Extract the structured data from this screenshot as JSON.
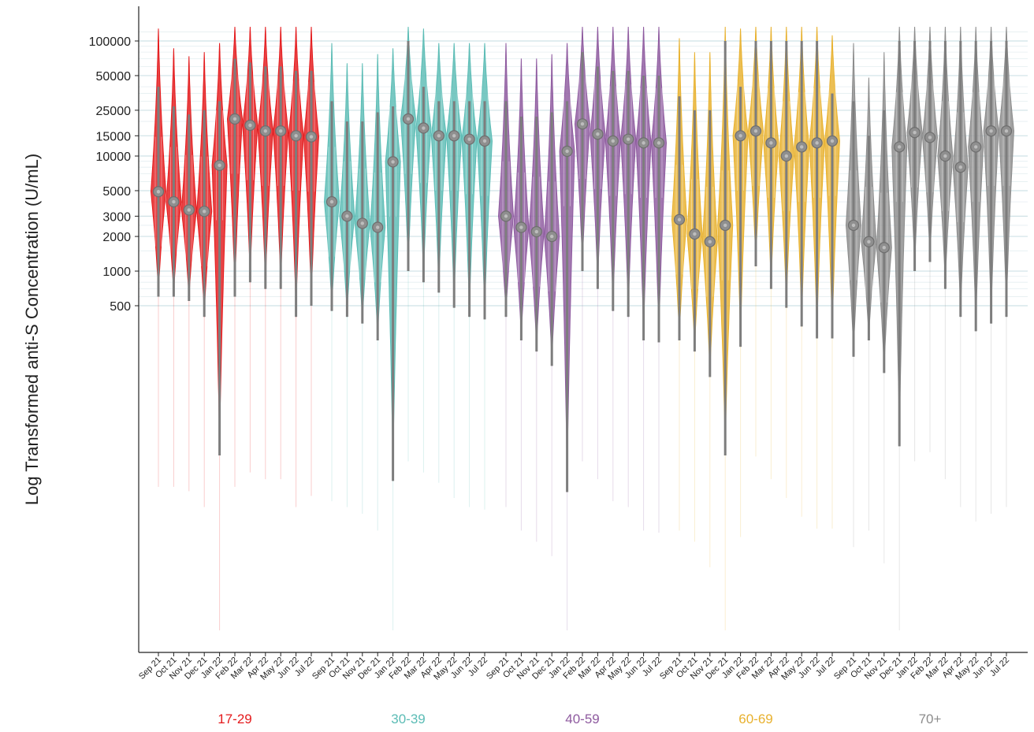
{
  "chart_data": {
    "type": "violin",
    "title": "",
    "xlabel": "",
    "ylabel": "Log Transformed anti-S Concentration (U/mL)",
    "y_scale": "log",
    "y_ticks": [
      500,
      1000,
      2000,
      3000,
      5000,
      10000,
      15000,
      25000,
      50000,
      100000
    ],
    "y_tick_labels": [
      "500",
      "1000",
      "2000",
      "3000",
      "5000",
      "10000",
      "15000",
      "25000",
      "50000",
      "100000"
    ],
    "ylim": [
      0.5,
      140000
    ],
    "grid": "horizontal",
    "months": [
      "Sep 21",
      "Oct 21",
      "Nov 21",
      "Dec 21",
      "Jan 22",
      "Feb 22",
      "Mar 22",
      "Apr 22",
      "May 22",
      "Jun 22",
      "Jul 22"
    ],
    "groups": [
      {
        "name": "17-29",
        "color": "#e41a1c",
        "medians": [
          4900,
          4000,
          3400,
          3300,
          8300,
          21000,
          18500,
          16500,
          16500,
          15000,
          14700
        ],
        "lower": [
          600,
          600,
          550,
          400,
          25,
          600,
          800,
          700,
          700,
          400,
          500
        ],
        "upper": [
          40000,
          27000,
          23000,
          25000,
          30000,
          70000,
          65000,
          60000,
          60000,
          55000,
          55000
        ]
      },
      {
        "name": "30-39",
        "color": "#5bbcb5",
        "medians": [
          4000,
          3000,
          2600,
          2400,
          8900,
          21000,
          17500,
          15000,
          15000,
          14000,
          13500
        ],
        "lower": [
          450,
          400,
          350,
          250,
          15,
          1000,
          800,
          650,
          480,
          400,
          380
        ],
        "upper": [
          30000,
          20000,
          20000,
          24000,
          27000,
          100000,
          40000,
          30000,
          30000,
          30000,
          30000
        ]
      },
      {
        "name": "40-59",
        "color": "#8e5a9f",
        "medians": [
          3000,
          2400,
          2200,
          2000,
          11000,
          19000,
          15500,
          13500,
          14000,
          13000,
          13000
        ],
        "lower": [
          400,
          250,
          200,
          150,
          12,
          1000,
          700,
          450,
          400,
          250,
          240
        ],
        "upper": [
          30000,
          22000,
          22000,
          24000,
          30000,
          80000,
          60000,
          55000,
          55000,
          50000,
          50000
        ]
      },
      {
        "name": "60-69",
        "color": "#e8b12e",
        "medians": [
          2800,
          2100,
          1800,
          2500,
          15000,
          16500,
          13000,
          10000,
          12000,
          13000,
          13500
        ],
        "lower": [
          250,
          200,
          120,
          25,
          220,
          1100,
          700,
          480,
          330,
          260,
          260
        ],
        "upper": [
          33000,
          25000,
          25000,
          100000,
          40000,
          100000,
          100000,
          100000,
          100000,
          100000,
          35000
        ]
      },
      {
        "name": "70+",
        "color": "#8c8c8c",
        "medians": [
          2500,
          1800,
          1600,
          12000,
          16000,
          14500,
          10000,
          8000,
          12000,
          16500,
          16500
        ],
        "lower": [
          180,
          250,
          130,
          30,
          1000,
          1200,
          700,
          400,
          300,
          350,
          400
        ],
        "upper": [
          30000,
          15000,
          25000,
          100000,
          100000,
          100000,
          100000,
          100000,
          100000,
          100000,
          100000
        ]
      }
    ]
  }
}
